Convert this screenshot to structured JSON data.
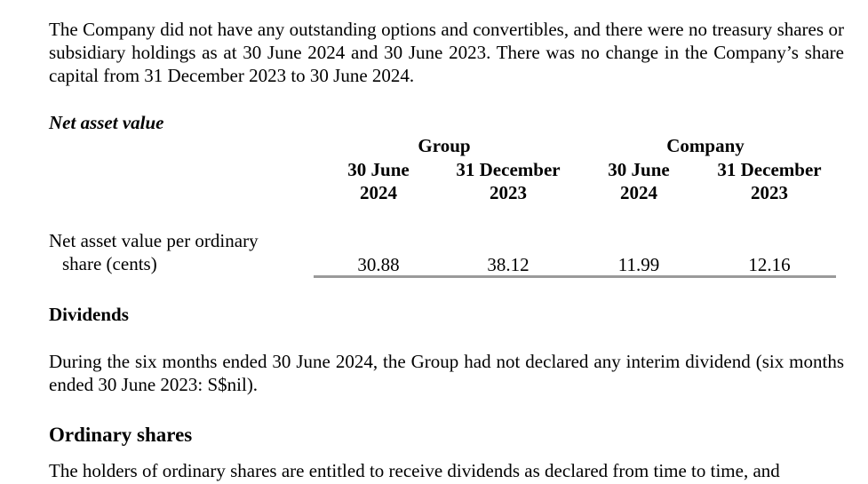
{
  "paragraphs": {
    "intro": "The Company did not have any outstanding options and convertibles, and there were no treasury shares or subsidiary holdings as at 30 June 2024 and 30 June 2023. There was no change in the Company’s share capital from 31 December 2023 to 30 June 2024.",
    "dividends_body": "During the six months ended 30 June 2024, the Group had not declared any interim dividend (six months ended 30 June 2023: S$nil).",
    "ordinary_body": "The holders of ordinary shares are entitled to receive dividends as declared from time to time, and"
  },
  "headings": {
    "nav": "Net asset value",
    "dividends": "Dividends",
    "ordinary": "Ordinary shares"
  },
  "nav_table": {
    "group_label": "Group",
    "company_label": "Company",
    "columns": [
      {
        "line1": "30 June",
        "line2": "2024"
      },
      {
        "line1": "31 December",
        "line2": "2023"
      },
      {
        "line1": "30 June",
        "line2": "2024"
      },
      {
        "line1": "31 December",
        "line2": "2023"
      }
    ],
    "row": {
      "label_line1": "Net asset value per ordinary",
      "label_line2": "share (cents)",
      "values": [
        "30.88",
        "38.12",
        "11.99",
        "12.16"
      ]
    }
  }
}
